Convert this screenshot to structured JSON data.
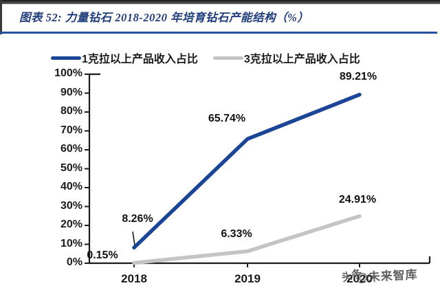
{
  "header": {
    "title": "图表 52:  力量钻石 2018-2020 年培育钻石产能结构（%）"
  },
  "chart_data": {
    "type": "line",
    "title": "力量钻石 2018-2020 年培育钻石产能结构（%）",
    "categories": [
      "2018",
      "2019",
      "2020"
    ],
    "series": [
      {
        "name": "1克拉以上产品收入占比",
        "color": "#1b4596",
        "values": [
          8.26,
          65.74,
          89.21
        ],
        "data_labels": [
          "8.26%",
          "65.74%",
          "89.21%"
        ]
      },
      {
        "name": "3克拉以上产品收入占比",
        "color": "#c4c4c4",
        "values": [
          0.15,
          6.33,
          24.91
        ],
        "data_labels": [
          "0.15%",
          "6.33%",
          "24.91%"
        ]
      }
    ],
    "ylim": [
      0,
      100
    ],
    "ytick_step": 10,
    "ytick_labels": [
      "0%",
      "10%",
      "20%",
      "30%",
      "40%",
      "50%",
      "60%",
      "70%",
      "80%",
      "90%",
      "100%"
    ],
    "grid": false,
    "legend_position": "top"
  },
  "watermark": {
    "brand": "头条",
    "handle": "@未来智库"
  },
  "colors": {
    "axis": "#1a1a1a",
    "title_text": "#203d7c",
    "title_underline": "#2450a0"
  }
}
